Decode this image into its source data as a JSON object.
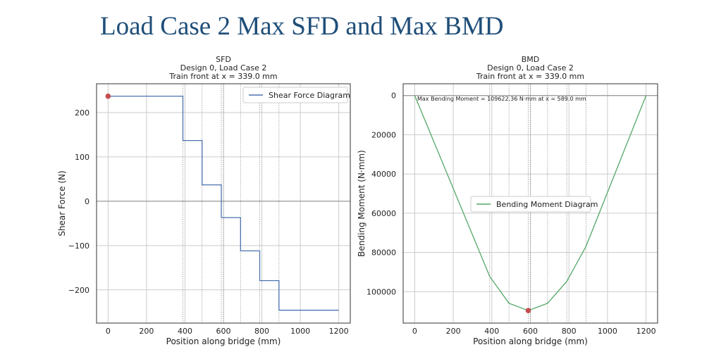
{
  "page": {
    "title": "Load Case 2 Max SFD and Max BMD"
  },
  "colors": {
    "sfd_line": "#4c72b0",
    "bmd_line": "#55a868",
    "marker": "#c44e52",
    "grid": "#cccccc",
    "zero_line": "#888888"
  },
  "chart_data": [
    {
      "type": "line",
      "title": "SFD",
      "subtitle1": "Design 0, Load Case 2",
      "subtitle2": "Train front at x = 339.0 mm",
      "xlabel": "Position along bridge (mm)",
      "ylabel": "Shear Force (N)",
      "xlim": [
        -60,
        1260
      ],
      "ylim": [
        -275,
        265
      ],
      "xticks": [
        0,
        200,
        400,
        600,
        800,
        1000,
        1200
      ],
      "xtick_labels": [
        "0",
        "200",
        "400",
        "600",
        "800",
        "1000",
        "1200"
      ],
      "yticks": [
        200,
        100,
        0,
        -100,
        -200
      ],
      "ytick_labels": [
        "200",
        "100",
        "0",
        "−100",
        "−200"
      ],
      "wheel_positions": [
        389,
        489,
        589,
        601,
        689,
        789,
        889
      ],
      "legend": {
        "label": "Shear Force Diagram",
        "placement": "upper right"
      },
      "series": [
        {
          "name": "Shear Force Diagram",
          "x": [
            0,
            389,
            389,
            489,
            489,
            589,
            589,
            689,
            689,
            789,
            789,
            889,
            889,
            1200
          ],
          "y": [
            237,
            237,
            137,
            137,
            37,
            37,
            -37,
            -37,
            -112,
            -112,
            -179,
            -179,
            -246,
            -246
          ]
        }
      ],
      "marker": {
        "x": 0,
        "y": 237
      }
    },
    {
      "type": "line",
      "title": "BMD",
      "subtitle1": "Design 0, Load Case 2",
      "subtitle2": "Train front at x = 339.0 mm",
      "xlabel": "Position along bridge (mm)",
      "ylabel": "Bending Moment (N·mm)",
      "y_inverted": true,
      "xlim": [
        -60,
        1260
      ],
      "ylim": [
        -6000,
        116000
      ],
      "xticks": [
        0,
        200,
        400,
        600,
        800,
        1000,
        1200
      ],
      "xtick_labels": [
        "0",
        "200",
        "400",
        "600",
        "800",
        "1000",
        "1200"
      ],
      "yticks": [
        0,
        20000,
        40000,
        60000,
        80000,
        100000
      ],
      "ytick_labels": [
        "0",
        "20000",
        "40000",
        "60000",
        "80000",
        "100000"
      ],
      "wheel_positions": [
        389,
        489,
        589,
        601,
        689,
        789,
        889
      ],
      "annotation": "Max Bending Moment = 109622.36 N·mm at x = 589.0 mm",
      "legend": {
        "label": "Bending Moment Diagram",
        "placement": "center right"
      },
      "series": [
        {
          "name": "Bending Moment Diagram",
          "x": [
            0,
            389,
            489,
            589,
            689,
            789,
            889,
            1200
          ],
          "y": [
            0,
            92193,
            105893,
            109622,
            105922,
            94722,
            76822,
            0
          ]
        }
      ],
      "marker": {
        "x": 589,
        "y": 109622
      }
    }
  ]
}
